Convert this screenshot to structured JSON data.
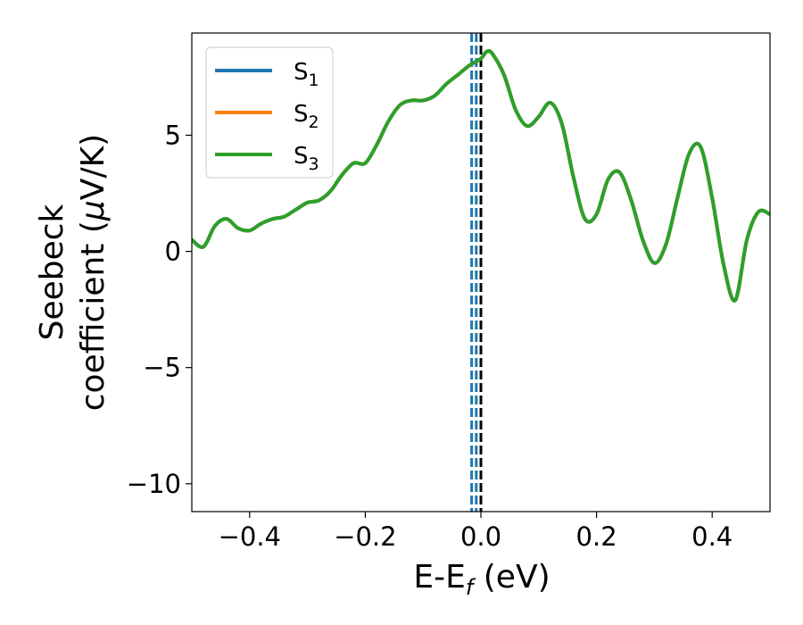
{
  "chart_data": {
    "type": "line",
    "xlabel": "E-E",
    "xlabel_sub": "f",
    "xlabel_unit": " (eV)",
    "ylabel_line1": "Seebeck",
    "ylabel_line2": "coefficient  (",
    "ylabel_mu": "μ",
    "ylabel_unit": "V/K)",
    "xlim": [
      -0.5,
      0.5
    ],
    "ylim": [
      -11.2,
      9.4
    ],
    "x_ticks": [
      -0.4,
      -0.2,
      0.0,
      0.2,
      0.4
    ],
    "x_tick_labels": [
      "−0.4",
      "−0.2",
      "0.0",
      "0.2",
      "0.4"
    ],
    "y_ticks": [
      -10,
      -5,
      0,
      5
    ],
    "y_tick_labels": [
      "−10",
      "−5",
      "0",
      "5"
    ],
    "grid": false,
    "legend_position": "top-left",
    "colors": {
      "S1": "#1f77b4",
      "S2": "#ff7f0e",
      "S3": "#2ca02c",
      "fermi": "#000000"
    },
    "series": [
      {
        "name": "S",
        "sub": "1",
        "color": "#1f77b4"
      },
      {
        "name": "S",
        "sub": "2",
        "color": "#ff7f0e"
      },
      {
        "name": "S",
        "sub": "3",
        "color": "#2ca02c"
      }
    ],
    "x": [
      -0.5,
      -0.48,
      -0.46,
      -0.44,
      -0.42,
      -0.4,
      -0.38,
      -0.36,
      -0.34,
      -0.32,
      -0.3,
      -0.28,
      -0.26,
      -0.24,
      -0.22,
      -0.2,
      -0.18,
      -0.16,
      -0.14,
      -0.12,
      -0.1,
      -0.08,
      -0.06,
      -0.04,
      -0.02,
      0.0,
      0.01,
      0.02,
      0.04,
      0.06,
      0.08,
      0.1,
      0.12,
      0.14,
      0.16,
      0.18,
      0.2,
      0.22,
      0.24,
      0.26,
      0.28,
      0.3,
      0.32,
      0.34,
      0.36,
      0.38,
      0.4,
      0.42,
      0.44,
      0.46,
      0.48,
      0.5
    ],
    "y": [
      0.5,
      0.2,
      1.1,
      1.4,
      1.0,
      0.9,
      1.2,
      1.4,
      1.5,
      1.8,
      2.1,
      2.2,
      2.6,
      3.3,
      3.8,
      3.8,
      4.6,
      5.6,
      6.3,
      6.5,
      6.5,
      6.7,
      7.2,
      7.6,
      8.0,
      8.3,
      8.6,
      8.5,
      7.6,
      6.1,
      5.4,
      5.8,
      6.4,
      5.5,
      3.2,
      1.4,
      1.6,
      3.1,
      3.4,
      2.2,
      0.5,
      -0.5,
      0.3,
      2.3,
      4.2,
      4.5,
      2.3,
      -0.6,
      -2.1,
      0.5,
      1.7,
      1.6
    ],
    "vlines": [
      {
        "x": -0.016,
        "style": "dashed",
        "color": "#1f77b4"
      },
      {
        "x": -0.008,
        "style": "dashed",
        "color": "#1f77b4"
      },
      {
        "x": 0.0,
        "style": "dashed",
        "color": "#000000"
      }
    ]
  }
}
